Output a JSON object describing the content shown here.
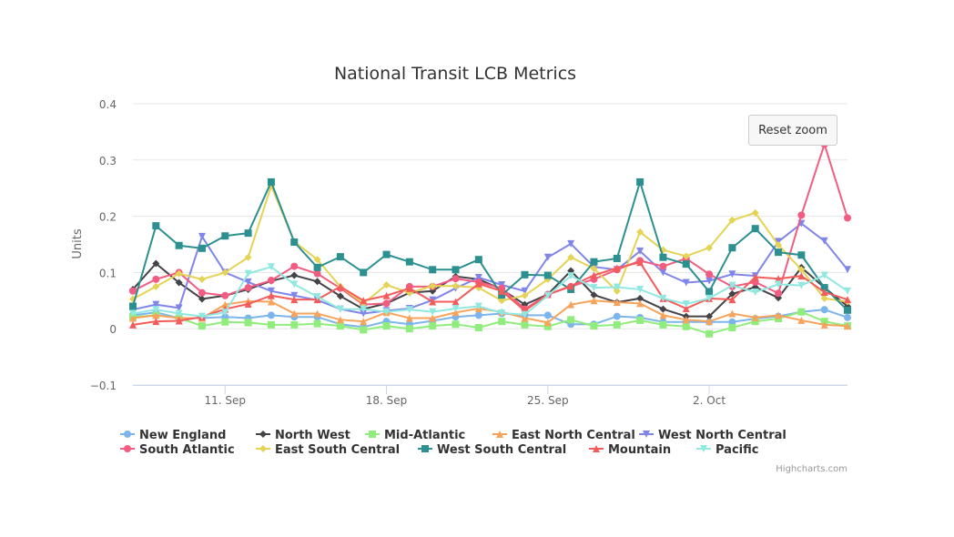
{
  "chart_data": {
    "type": "line",
    "title": "National Transit LCB Metrics",
    "ylabel": "Units",
    "xlabel": "",
    "ylim": [
      -0.1,
      0.4
    ],
    "yticks": [
      "−0.1",
      "0",
      "0.1",
      "0.2",
      "0.3",
      "0.4"
    ],
    "ytick_values": [
      -0.1,
      0,
      0.1,
      0.2,
      0.3,
      0.4
    ],
    "xticks": [
      {
        "label": "11. Sep",
        "index": 4
      },
      {
        "label": "18. Sep",
        "index": 11
      },
      {
        "label": "25. Sep",
        "index": 18
      },
      {
        "label": "2. Oct",
        "index": 25
      }
    ],
    "x": [
      "7 Sep",
      "8 Sep",
      "9 Sep",
      "10 Sep",
      "11 Sep",
      "12 Sep",
      "13 Sep",
      "14 Sep",
      "15 Sep",
      "16 Sep",
      "17 Sep",
      "18 Sep",
      "19 Sep",
      "20 Sep",
      "21 Sep",
      "22 Sep",
      "23 Sep",
      "24 Sep",
      "25 Sep",
      "26 Sep",
      "27 Sep",
      "28 Sep",
      "29 Sep",
      "30 Sep",
      "1 Oct",
      "2 Oct",
      "3 Oct",
      "4 Oct",
      "5 Oct",
      "6 Oct",
      "7 Oct",
      "8 Oct"
    ],
    "grid": true,
    "legend_placement": "bottom",
    "credits": "Highcharts.com",
    "series": [
      {
        "name": "New England",
        "color": "#7cb5ec",
        "marker": "circle",
        "values": [
          0.024,
          0.029,
          0.019,
          0.019,
          0.021,
          0.019,
          0.024,
          0.021,
          0.021,
          0.008,
          0.003,
          0.013,
          0.008,
          0.014,
          0.021,
          0.024,
          0.027,
          0.024,
          0.024,
          0.008,
          0.008,
          0.022,
          0.02,
          0.012,
          0.012,
          0.012,
          0.012,
          0.018,
          0.022,
          0.03,
          0.034,
          0.02
        ]
      },
      {
        "name": "North West",
        "color": "#434348",
        "marker": "diamond",
        "values": [
          0.07,
          0.116,
          0.082,
          0.053,
          0.059,
          0.07,
          0.085,
          0.095,
          0.084,
          0.058,
          0.035,
          0.045,
          0.064,
          0.067,
          0.093,
          0.088,
          0.07,
          0.043,
          0.061,
          0.103,
          0.06,
          0.047,
          0.054,
          0.035,
          0.022,
          0.022,
          0.062,
          0.074,
          0.055,
          0.109,
          0.073,
          0.04
        ]
      },
      {
        "name": "Mid-Atlantic",
        "color": "#90ed7d",
        "marker": "square",
        "values": [
          0.021,
          0.024,
          0.019,
          0.005,
          0.012,
          0.011,
          0.007,
          0.007,
          0.009,
          0.005,
          -0.002,
          0.005,
          0,
          0.005,
          0.008,
          0.002,
          0.013,
          0.007,
          0.004,
          0.016,
          0.005,
          0.007,
          0.015,
          0.007,
          0.004,
          -0.009,
          0.002,
          0.013,
          0.018,
          0.03,
          0.013,
          0.005
        ]
      },
      {
        "name": "East North Central",
        "color": "#f7a35c",
        "marker": "triangle",
        "values": [
          0.019,
          0.024,
          0.019,
          0.019,
          0.043,
          0.049,
          0.048,
          0.027,
          0.027,
          0.016,
          0.013,
          0.029,
          0.019,
          0.019,
          0.029,
          0.036,
          0.03,
          0.019,
          0.011,
          0.043,
          0.05,
          0.047,
          0.045,
          0.024,
          0.016,
          0.013,
          0.027,
          0.02,
          0.024,
          0.015,
          0.007,
          0.005
        ]
      },
      {
        "name": "West North Central",
        "color": "#8085e9",
        "marker": "triangle-down",
        "values": [
          0.034,
          0.043,
          0.037,
          0.164,
          0.1,
          0.083,
          0.067,
          0.059,
          0.051,
          0.035,
          0.027,
          0.032,
          0.036,
          0.051,
          0.072,
          0.091,
          0.078,
          0.067,
          0.127,
          0.151,
          0.11,
          0.105,
          0.138,
          0.1,
          0.082,
          0.085,
          0.097,
          0.094,
          0.155,
          0.187,
          0.156,
          0.105
        ]
      },
      {
        "name": "South Atlantic",
        "color": "#f15c80",
        "marker": "circle",
        "values": [
          0.067,
          0.088,
          0.1,
          0.064,
          0.059,
          0.073,
          0.086,
          0.111,
          0.098,
          0.072,
          0.043,
          0.045,
          0.075,
          0.075,
          0.089,
          0.083,
          0.072,
          0.035,
          0.061,
          0.075,
          0.088,
          0.105,
          0.121,
          0.111,
          0.125,
          0.097,
          0.075,
          0.083,
          0.063,
          0.202,
          0.328,
          0.197
        ]
      },
      {
        "name": "East South Central",
        "color": "#e4d354",
        "marker": "diamond",
        "values": [
          0.053,
          0.075,
          0.098,
          0.088,
          0.1,
          0.127,
          0.254,
          0.155,
          0.123,
          0.075,
          0.045,
          0.078,
          0.064,
          0.076,
          0.076,
          0.073,
          0.05,
          0.059,
          0.088,
          0.127,
          0.107,
          0.067,
          0.172,
          0.14,
          0.129,
          0.144,
          0.193,
          0.206,
          0.149,
          0.105,
          0.054,
          0.048
        ]
      },
      {
        "name": "West South Central",
        "color": "#2b908f",
        "marker": "square",
        "values": [
          0.04,
          0.183,
          0.148,
          0.143,
          0.165,
          0.17,
          0.261,
          0.154,
          0.109,
          0.128,
          0.1,
          0.132,
          0.119,
          0.105,
          0.105,
          0.123,
          0.06,
          0.096,
          0.095,
          0.07,
          0.119,
          0.125,
          0.261,
          0.127,
          0.115,
          0.066,
          0.144,
          0.178,
          0.136,
          0.131,
          0.073,
          0.033
        ]
      },
      {
        "name": "Mountain",
        "color": "#f45b5b",
        "marker": "triangle",
        "values": [
          0.007,
          0.013,
          0.014,
          0.021,
          0.035,
          0.044,
          0.059,
          0.052,
          0.052,
          0.075,
          0.05,
          0.059,
          0.072,
          0.048,
          0.048,
          0.08,
          0.067,
          0.032,
          0.061,
          0.076,
          0.095,
          0.108,
          0.118,
          0.054,
          0.036,
          0.054,
          0.052,
          0.092,
          0.089,
          0.094,
          0.065,
          0.052
        ]
      },
      {
        "name": "Pacific",
        "color": "#91e8e1",
        "marker": "triangle-down",
        "values": [
          0.027,
          0.034,
          0.027,
          0.022,
          0.029,
          0.098,
          0.11,
          0.079,
          0.057,
          0.035,
          0.035,
          0.03,
          0.034,
          0.03,
          0.036,
          0.04,
          0.028,
          0.025,
          0.059,
          0.094,
          0.073,
          0.074,
          0.07,
          0.054,
          0.044,
          0.054,
          0.077,
          0.065,
          0.079,
          0.077,
          0.095,
          0.067
        ]
      }
    ]
  },
  "ui": {
    "reset_zoom_label": "Reset zoom"
  }
}
